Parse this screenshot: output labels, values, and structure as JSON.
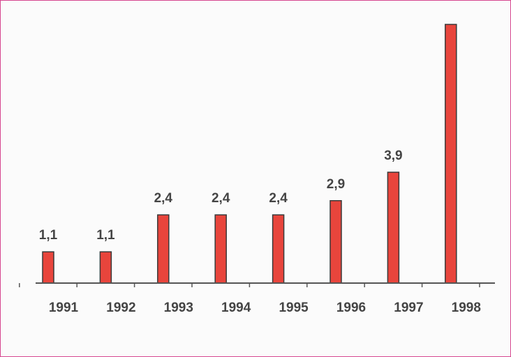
{
  "chart_data": {
    "type": "bar",
    "title": "",
    "xlabel": "",
    "ylabel": "",
    "categories": [
      "1991",
      "1992",
      "1993",
      "1994",
      "1995",
      "1996",
      "1997",
      "1998"
    ],
    "values": [
      1.1,
      1.1,
      2.4,
      2.4,
      2.4,
      2.9,
      3.9,
      9.1
    ],
    "data_labels": [
      "1,1",
      "1,1",
      "2,4",
      "2,4",
      "2,4",
      "2,9",
      "3,9",
      ""
    ],
    "ylim": [
      0,
      9.1
    ],
    "grid": false,
    "legend": "none",
    "colors": {
      "bar": "#e8453c",
      "outline": "#3a3a3a",
      "axis": "#555555",
      "text": "#444444",
      "border": "#d6478f"
    }
  }
}
